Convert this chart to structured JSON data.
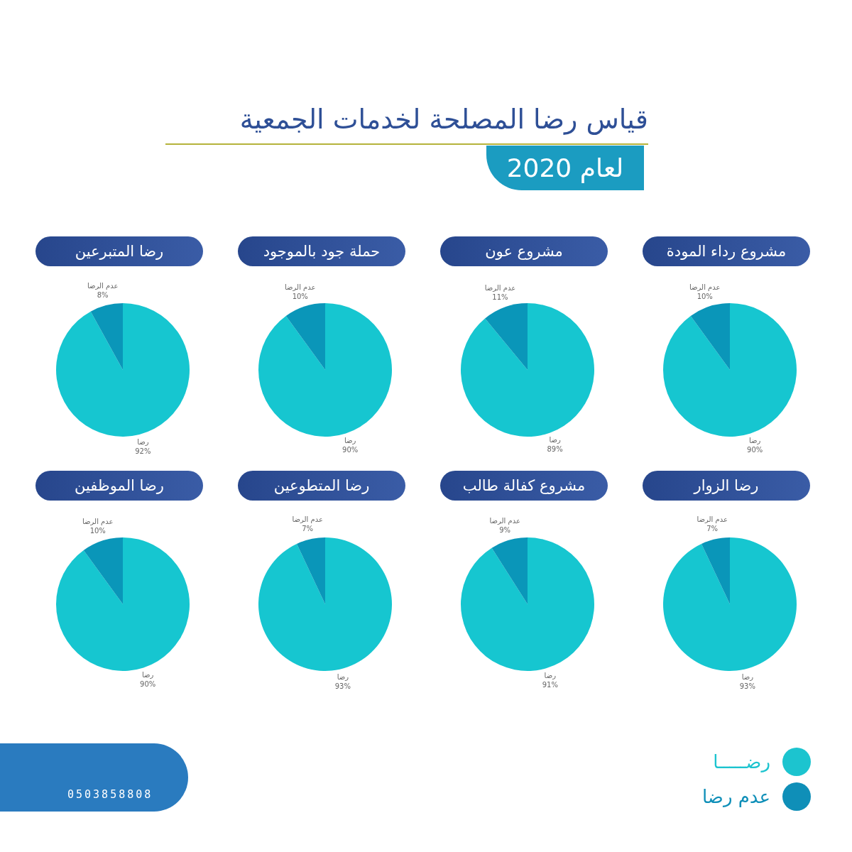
{
  "chart_data": [
    {
      "type": "other",
      "title": "قياس رضا المصلحة لخدمات الجمعية",
      "subtitle": "لعام 2020",
      "annotations": [
        "0503858808"
      ]
    },
    {
      "type": "pie",
      "title": "مشروع رداء المودة",
      "categories": [
        "رضا",
        "عدم الرضا"
      ],
      "values": [
        90,
        10
      ],
      "value_labels": [
        "90%",
        "10%"
      ],
      "colors": [
        "#16c6d0",
        "#0a96b9"
      ]
    },
    {
      "type": "pie",
      "title": "مشروع عون",
      "categories": [
        "رضا",
        "عدم الرضا"
      ],
      "values": [
        89,
        11
      ],
      "value_labels": [
        "89%",
        "11%"
      ],
      "colors": [
        "#16c6d0",
        "#0a96b9"
      ]
    },
    {
      "type": "pie",
      "title": "حملة جود بالموجود",
      "categories": [
        "رضا",
        "عدم الرضا"
      ],
      "values": [
        90,
        10
      ],
      "value_labels": [
        "90%",
        "10%"
      ],
      "colors": [
        "#16c6d0",
        "#0a96b9"
      ]
    },
    {
      "type": "pie",
      "title": "رضا المتبرعين",
      "categories": [
        "رضا",
        "عدم الرضا"
      ],
      "values": [
        92,
        8
      ],
      "value_labels": [
        "92%",
        "8%"
      ],
      "colors": [
        "#16c6d0",
        "#0a96b9"
      ]
    },
    {
      "type": "pie",
      "title": "رضا الزوار",
      "categories": [
        "رضا",
        "عدم الرضا"
      ],
      "values": [
        93,
        7
      ],
      "value_labels": [
        "93%",
        "7%"
      ],
      "colors": [
        "#16c6d0",
        "#0a96b9"
      ]
    },
    {
      "type": "pie",
      "title": "مشروع كفالة طالب",
      "categories": [
        "رضا",
        "عدم الرضا"
      ],
      "values": [
        91,
        9
      ],
      "value_labels": [
        "91%",
        "9%"
      ],
      "colors": [
        "#16c6d0",
        "#0a96b9"
      ]
    },
    {
      "type": "pie",
      "title": "رضا المتطوعين",
      "categories": [
        "رضا",
        "عدم الرضا"
      ],
      "values": [
        93,
        7
      ],
      "value_labels": [
        "93%",
        "7%"
      ],
      "colors": [
        "#16c6d0",
        "#0a96b9"
      ]
    },
    {
      "type": "pie",
      "title": "رضا الموظفين",
      "categories": [
        "رضا",
        "عدم الرضا"
      ],
      "values": [
        90,
        10
      ],
      "value_labels": [
        "90%",
        "10%"
      ],
      "colors": [
        "#16c6d0",
        "#0a96b9"
      ]
    },
    {
      "type": "other",
      "annotations": [
        "رضـــــا",
        "عدم رضا"
      ],
      "colors": [
        "#1cc4cf",
        "#0f8fb8"
      ]
    }
  ]
}
